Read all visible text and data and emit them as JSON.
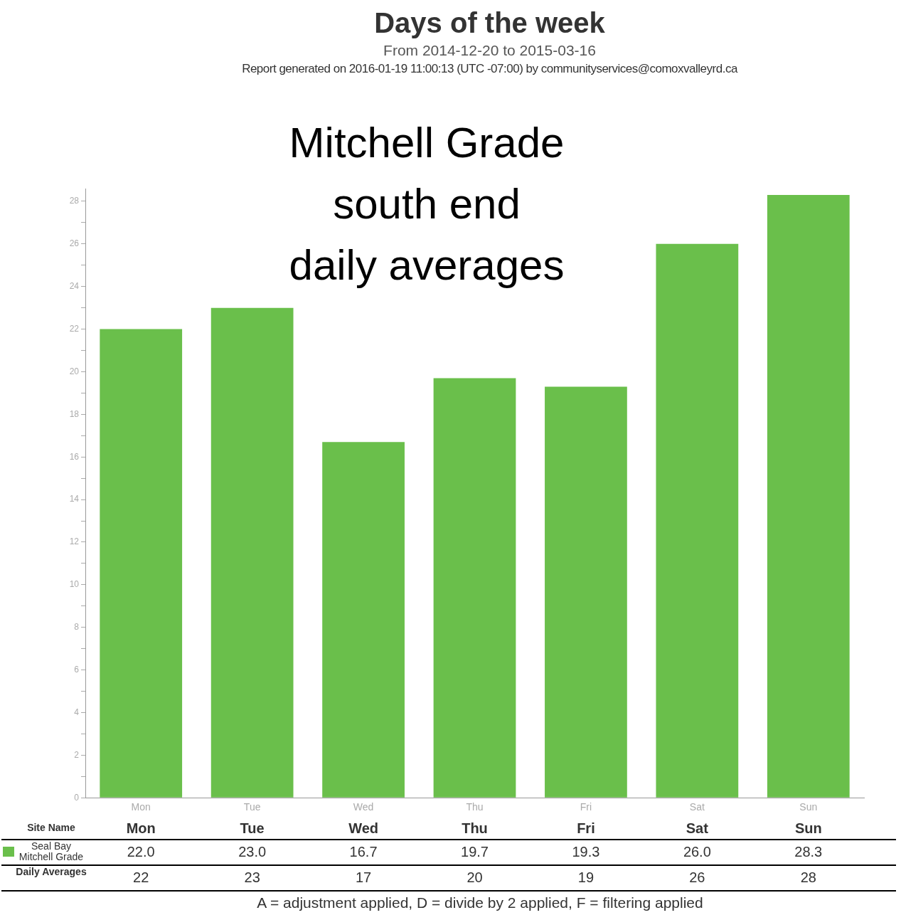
{
  "chart_data": {
    "type": "bar",
    "title": "Days of the week",
    "subtitle": "From 2014-12-20 to 2015-03-16",
    "categories": [
      "Mon",
      "Tue",
      "Wed",
      "Thu",
      "Fri",
      "Sat",
      "Sun"
    ],
    "series": [
      {
        "name": "Seal Bay Mitchell Grade",
        "color": "#6abf4b",
        "values": [
          22.0,
          23.0,
          16.7,
          19.7,
          19.3,
          26.0,
          28.3
        ],
        "value_labels": [
          "22.0",
          "23.0",
          "16.7",
          "19.7",
          "19.3",
          "26.0",
          "28.3"
        ]
      }
    ],
    "ylim": [
      0,
      28.6
    ],
    "yticks": [
      0,
      {
        "value": 1,
        "label": null
      },
      2,
      {
        "value": 3,
        "label": null
      },
      4,
      {
        "value": 5,
        "label": null
      },
      6,
      {
        "value": 7,
        "label": null
      },
      8,
      {
        "value": 9,
        "label": null
      },
      10,
      {
        "value": 11,
        "label": null
      },
      12,
      {
        "value": 13,
        "label": null
      },
      14,
      {
        "value": 15,
        "label": null
      },
      16,
      {
        "value": 17,
        "label": null
      },
      18,
      {
        "value": 19,
        "label": null
      },
      20,
      {
        "value": 21,
        "label": null
      },
      22,
      {
        "value": 23,
        "label": null
      },
      24,
      {
        "value": 25,
        "label": null
      },
      26,
      {
        "value": 27,
        "label": null
      },
      28
    ],
    "grid": false,
    "legend": "bottom left",
    "annotations": [
      "Report generated on 2016-01-19 11:00:13 (UTC -07:00) by communityservices@comoxvalleyrd.ca",
      "Mitchell Grade\nsouth end\ndaily averages",
      "Site Name",
      "Daily Averages",
      "22",
      "23",
      "17",
      "20",
      "19",
      "26",
      "28",
      "A = adjustment applied, D = divide by 2 applied, F = filtering applied"
    ]
  }
}
